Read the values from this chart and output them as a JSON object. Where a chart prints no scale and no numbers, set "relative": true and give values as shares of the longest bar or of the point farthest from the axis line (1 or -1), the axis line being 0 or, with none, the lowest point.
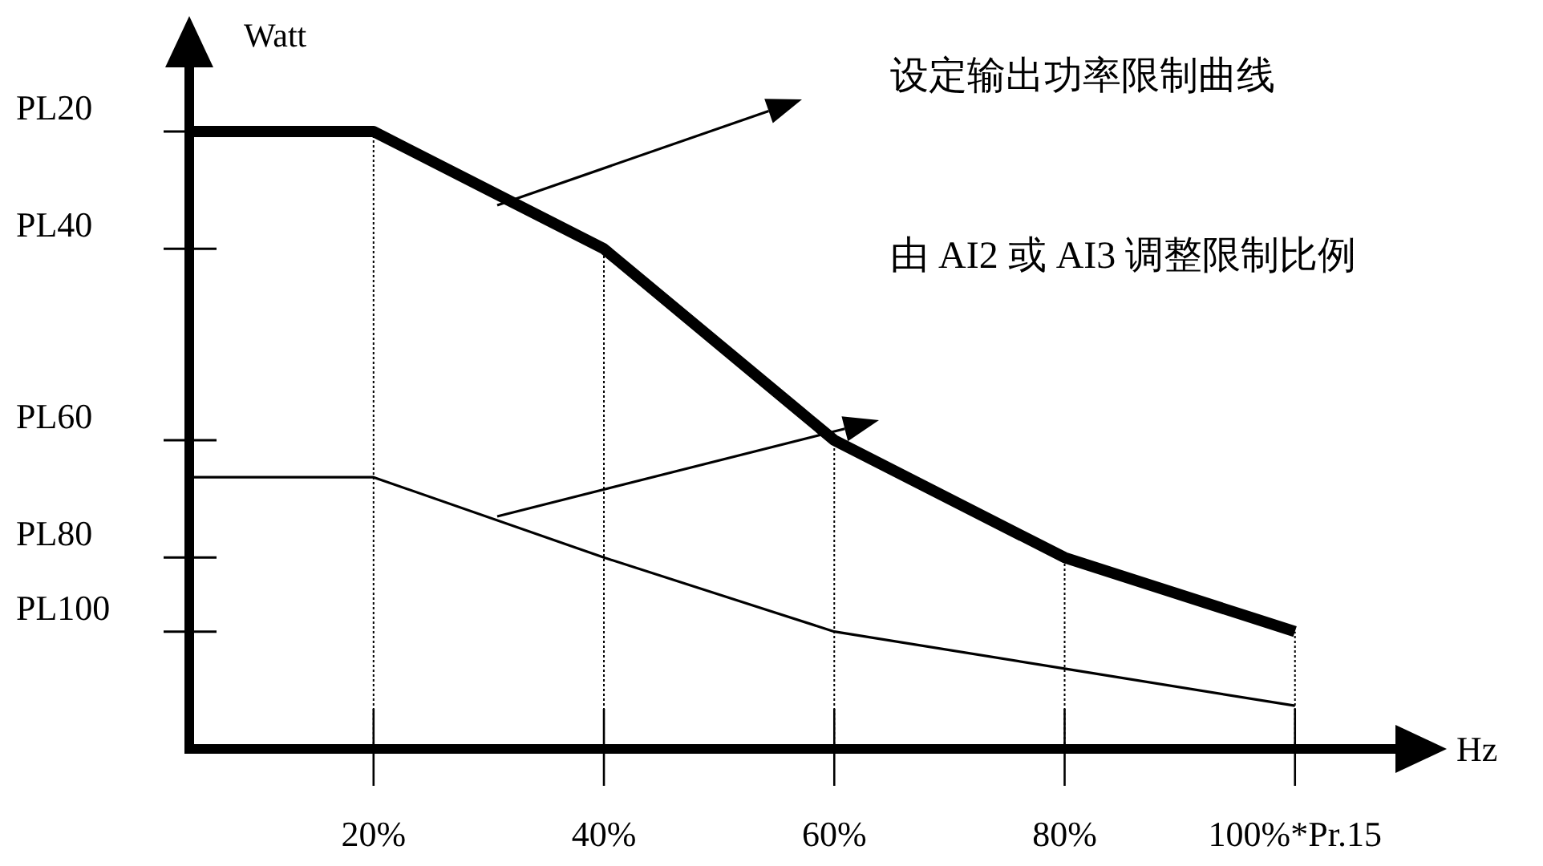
{
  "chart_data": {
    "type": "line",
    "xlabel": "Hz",
    "ylabel": "Watt",
    "relative": true,
    "xlim": [
      4,
      109
    ],
    "xticks": [
      {
        "value": 20,
        "label": "20%"
      },
      {
        "value": 40,
        "label": "40%"
      },
      {
        "value": 60,
        "label": "60%"
      },
      {
        "value": 80,
        "label": "80%"
      },
      {
        "value": 100,
        "label": "100%*Pr.15"
      }
    ],
    "series": [
      {
        "color": "#000000",
        "x": [
          4,
          20,
          40,
          60,
          80,
          100
        ],
        "values": [
          1,
          1,
          0.81,
          0.5,
          0.31,
          0.19
        ]
      },
      {
        "color": "#000000",
        "x": [
          4,
          20,
          40,
          60,
          80,
          100
        ],
        "values": [
          0.44,
          0.44,
          0.31,
          0.19,
          0.13,
          0.07
        ]
      }
    ],
    "ref_lines": [
      {
        "axis": "x",
        "value": 20,
        "line_style": "dotted"
      },
      {
        "axis": "x",
        "value": 40,
        "line_style": "dotted"
      },
      {
        "axis": "x",
        "value": 60,
        "line_style": "dotted"
      },
      {
        "axis": "x",
        "value": 80,
        "line_style": "dotted"
      },
      {
        "axis": "x",
        "value": 100,
        "line_style": "dotted"
      }
    ],
    "annotations": [
      "设定输出功率限制曲线",
      "由 AI2 或 AI3 调整限制比例",
      "PL20",
      "PL40",
      "PL60",
      "PL80",
      "PL100"
    ]
  }
}
